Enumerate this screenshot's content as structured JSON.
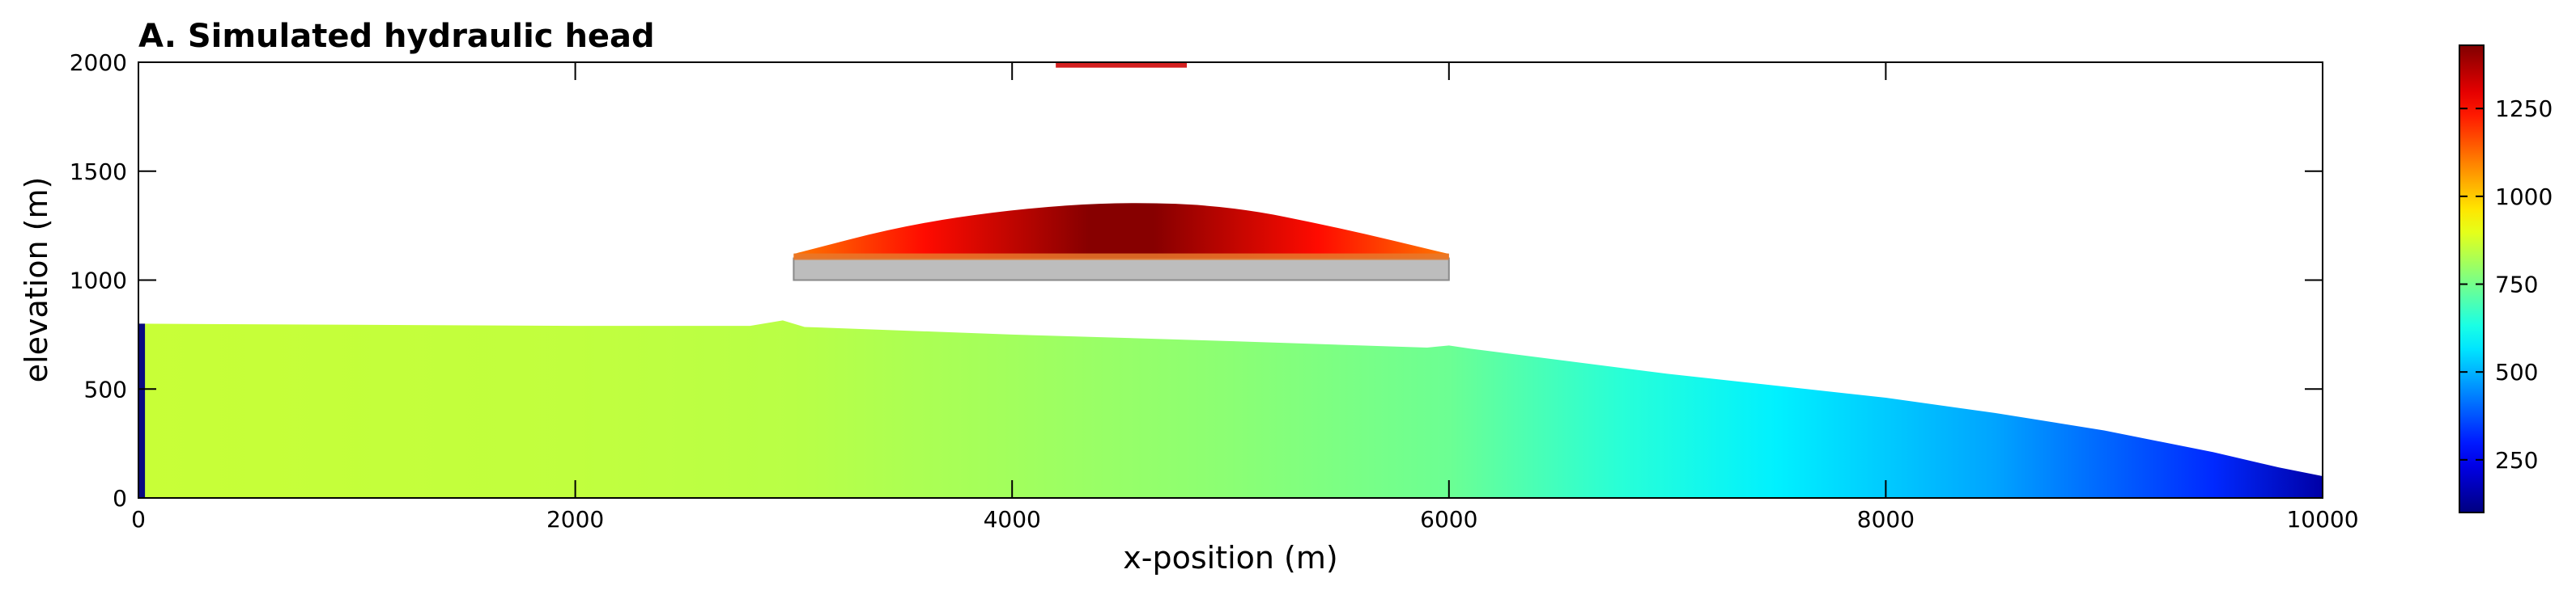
{
  "chart_data": {
    "type": "heatmap",
    "title": "A. Simulated hydraulic head",
    "xlabel": "x-position (m)",
    "ylabel": "elevation (m)",
    "xlim": [
      0,
      10000
    ],
    "ylim": [
      0,
      2000
    ],
    "x_ticks": [
      0,
      2000,
      4000,
      6000,
      8000,
      10000
    ],
    "y_ticks": [
      0,
      500,
      1000,
      1500,
      2000
    ],
    "colorbar": {
      "colormap": "jet",
      "range": [
        100,
        1430
      ],
      "ticks": [
        250,
        500,
        750,
        1000,
        1250
      ]
    },
    "regions": {
      "main_aquifer": {
        "top_profile_x": [
          0,
          1000,
          2000,
          2800,
          2950,
          3050,
          4000,
          5000,
          5900,
          6000,
          6100,
          7000,
          8000,
          8500,
          9000,
          9500,
          9800,
          10000
        ],
        "top_profile_y": [
          800,
          795,
          790,
          790,
          815,
          785,
          750,
          720,
          690,
          700,
          685,
          570,
          460,
          390,
          310,
          210,
          140,
          100
        ],
        "head_x": [
          0,
          2000,
          3000,
          4000,
          5000,
          6000,
          6800,
          7500,
          8500,
          9500,
          10000
        ],
        "head_value": [
          860,
          850,
          840,
          810,
          780,
          740,
          650,
          580,
          480,
          320,
          150
        ]
      },
      "perched_aquifer": {
        "x_range": [
          3000,
          6000
        ],
        "bottom": 1100,
        "top_profile_x": [
          3000,
          3500,
          4000,
          4500,
          5000,
          5500,
          6000
        ],
        "top_profile_y": [
          1120,
          1250,
          1325,
          1360,
          1340,
          1240,
          1120
        ],
        "head_range": [
          1100,
          1430
        ]
      },
      "aquitard": {
        "x_range": [
          3000,
          6000
        ],
        "y_range": [
          1000,
          1100
        ],
        "color": "#bdbdbd"
      },
      "left_boundary": {
        "x_range": [
          0,
          30
        ],
        "y_range": [
          0,
          800
        ],
        "color": "#0a0a80"
      },
      "recharge_zone": {
        "x_range": [
          4200,
          4800
        ],
        "elevation": 1990,
        "color": "#d42020"
      }
    }
  }
}
